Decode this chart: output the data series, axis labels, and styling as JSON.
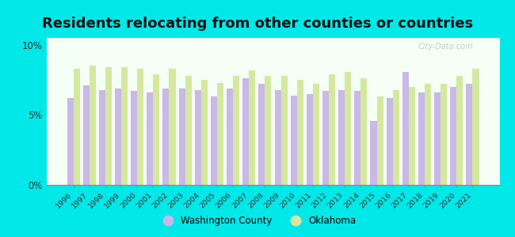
{
  "title": "Residents relocating from other counties or countries",
  "years": [
    1996,
    1997,
    1998,
    1999,
    2000,
    2001,
    2002,
    2003,
    2004,
    2005,
    2006,
    2007,
    2008,
    2009,
    2010,
    2011,
    2012,
    2013,
    2014,
    2015,
    2016,
    2017,
    2018,
    2019,
    2020,
    2021
  ],
  "washington_county": [
    6.2,
    7.1,
    6.8,
    6.9,
    6.7,
    6.6,
    6.9,
    6.9,
    6.8,
    6.3,
    6.9,
    7.6,
    7.2,
    6.8,
    6.4,
    6.5,
    6.7,
    6.8,
    6.7,
    4.6,
    6.2,
    8.1,
    6.6,
    6.6,
    7.0,
    7.2
  ],
  "oklahoma": [
    8.3,
    8.5,
    8.4,
    8.4,
    8.3,
    7.9,
    8.3,
    7.8,
    7.5,
    7.3,
    7.8,
    8.2,
    7.8,
    7.8,
    7.5,
    7.2,
    7.9,
    8.1,
    7.6,
    6.3,
    6.8,
    7.0,
    7.2,
    7.2,
    7.8,
    8.3
  ],
  "washington_color": "#c9b8e8",
  "oklahoma_color": "#d4e8a0",
  "background_color": "#00e8e8",
  "plot_bg_top": "#f5fff5",
  "plot_bg_bottom": "#eaf5ea",
  "ylim": [
    0,
    10.5
  ],
  "yticks": [
    0,
    5,
    10
  ],
  "ytick_labels": [
    "0%",
    "5%",
    "10%"
  ],
  "title_fontsize": 13,
  "legend_washington": "Washington County",
  "legend_oklahoma": "Oklahoma"
}
